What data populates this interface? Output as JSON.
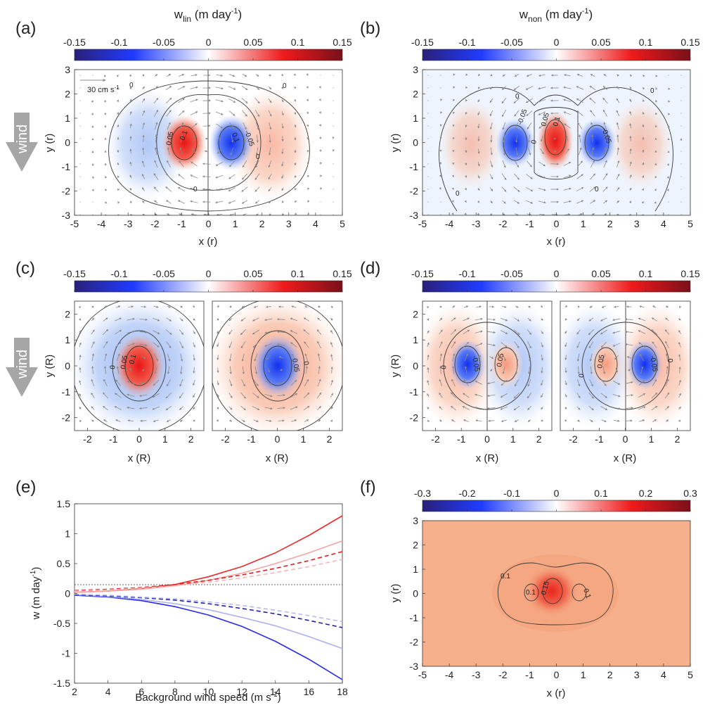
{
  "panel_labels": [
    "(a)",
    "(b)",
    "(c)",
    "(d)",
    "(e)",
    "(f)"
  ],
  "wind_label": "wind",
  "colors": {
    "neg_dark": "#2a1f7a",
    "neg": "#1f3cff",
    "zero": "#ffffff",
    "pos": "#ee1b1b",
    "pos_dark": "#7a0f1a",
    "field_f": "#f6b18c",
    "contour": "#3a3a3a",
    "arrow": "#8a8a8a"
  },
  "chart_data": [
    {
      "id": "a",
      "type": "heatmap",
      "title_main": "w",
      "title_sub": "lin",
      "title_unit": " (m day",
      "title_exp": "-1",
      "title_close": ")",
      "colorbar": {
        "min": -0.15,
        "max": 0.15,
        "ticks": [
          "-0.15",
          "-0.1",
          "-0.05",
          "0",
          "0.05",
          "0.1",
          "0.15"
        ]
      },
      "xlabel": "x (r)",
      "ylabel": "y (r)",
      "xlim": [
        -5,
        5
      ],
      "ylim": [
        -3,
        3
      ],
      "xticks": [
        "-5",
        "-4",
        "-3",
        "-2",
        "-1",
        "0",
        "1",
        "2",
        "3",
        "4",
        "5"
      ],
      "yticks": [
        "-3",
        "-2",
        "-1",
        "0",
        "1",
        "2",
        "3"
      ],
      "reference_arrow": {
        "label_main": "30 cm s",
        "label_exp": "-1"
      },
      "contour_labels": [
        "0",
        "0",
        "0",
        "0",
        "0.05",
        "0.1",
        "-0.05",
        "0.1"
      ]
    },
    {
      "id": "b",
      "type": "heatmap",
      "title_main": "w",
      "title_sub": "non",
      "title_unit": " (m day",
      "title_exp": "-1",
      "title_close": ")",
      "colorbar": {
        "min": -0.15,
        "max": 0.15,
        "ticks": [
          "-0.15",
          "-0.1",
          "-0.05",
          "0",
          "0.05",
          "0.1",
          "0.15"
        ]
      },
      "xlabel": "x (r)",
      "ylabel": "y (r)",
      "xlim": [
        -5,
        5
      ],
      "ylim": [
        -3,
        3
      ],
      "xticks": [
        "-5",
        "-4",
        "-3",
        "-2",
        "-1",
        "0",
        "1",
        "2",
        "3",
        "4",
        "5"
      ],
      "yticks": [
        "-3",
        "-2",
        "-1",
        "0",
        "1",
        "2",
        "3"
      ],
      "contour_labels": [
        "0",
        "0",
        "0",
        "0",
        "-0.05",
        "0.05",
        "0",
        "0.1",
        "-0.05"
      ]
    },
    {
      "id": "c",
      "type": "heatmap",
      "colorbar": {
        "min": -0.15,
        "max": 0.15,
        "ticks": [
          "-0.15",
          "-0.1",
          "-0.05",
          "0",
          "0.05",
          "0.1",
          "0.15"
        ]
      },
      "xlabel": "x (R)",
      "ylabel": "y (R)",
      "xlim": [
        -2.5,
        2.5
      ],
      "ylim": [
        -2.5,
        2.5
      ],
      "xticks": [
        "-2",
        "-1",
        "0",
        "1",
        "2"
      ],
      "yticks": [
        "-2",
        "-1",
        "0",
        "1",
        "2"
      ],
      "contour_labels": [
        "0",
        "0.05",
        "0.1",
        "0",
        "0.05"
      ]
    },
    {
      "id": "d",
      "type": "heatmap",
      "colorbar": {
        "min": -0.15,
        "max": 0.15,
        "ticks": [
          "-0.15",
          "-0.1",
          "-0.05",
          "0",
          "0.05",
          "0.1",
          "0.15"
        ]
      },
      "xlabel": "x (R)",
      "ylabel": "y (R)",
      "xlim": [
        -2.5,
        2.5
      ],
      "ylim": [
        -2.5,
        2.5
      ],
      "xticks": [
        "-2",
        "-1",
        "0",
        "1",
        "2"
      ],
      "yticks": [
        "-2",
        "-1",
        "0",
        "1",
        "2"
      ],
      "contour_labels": [
        "-0.05",
        "0",
        "0.05",
        "0",
        "0.05",
        "0",
        "-0.05"
      ]
    },
    {
      "id": "e",
      "type": "line",
      "xlabel": "Background wind speed (m s",
      "xlabel_exp": "-1",
      "xlabel_close": ")",
      "ylabel": "w (m day",
      "ylabel_exp": "-1",
      "ylabel_close": ")",
      "xlim": [
        2,
        18
      ],
      "ylim": [
        -1.5,
        1.5
      ],
      "xticks": [
        "2",
        "4",
        "6",
        "8",
        "10",
        "12",
        "14",
        "16",
        "18"
      ],
      "yticks": [
        "-1.5",
        "-1",
        "-0.5",
        "0",
        "0.5",
        "1",
        "1.5"
      ],
      "x": [
        2,
        4,
        6,
        8,
        10,
        12,
        14,
        16,
        18
      ],
      "series": [
        {
          "color": "#ee2b2b",
          "dash": false,
          "values": [
            0.02,
            0.04,
            0.08,
            0.15,
            0.28,
            0.45,
            0.68,
            0.97,
            1.3
          ]
        },
        {
          "color": "#f5a5a5",
          "dash": false,
          "values": [
            0.02,
            0.04,
            0.07,
            0.13,
            0.22,
            0.34,
            0.5,
            0.68,
            0.88
          ]
        },
        {
          "color": "#dd2020",
          "dash": true,
          "values": [
            0.05,
            0.07,
            0.1,
            0.15,
            0.22,
            0.31,
            0.42,
            0.55,
            0.7
          ]
        },
        {
          "color": "#f5b5b5",
          "dash": true,
          "values": [
            0.04,
            0.06,
            0.09,
            0.13,
            0.19,
            0.26,
            0.35,
            0.45,
            0.57
          ]
        },
        {
          "color": "#2a2aee",
          "dash": false,
          "values": [
            -0.03,
            -0.06,
            -0.12,
            -0.22,
            -0.36,
            -0.55,
            -0.8,
            -1.1,
            -1.44
          ]
        },
        {
          "color": "#aab0f0",
          "dash": false,
          "values": [
            -0.02,
            -0.05,
            -0.1,
            -0.17,
            -0.27,
            -0.4,
            -0.54,
            -0.72,
            -0.92
          ]
        },
        {
          "color": "#2020aa",
          "dash": true,
          "values": [
            -0.02,
            -0.04,
            -0.07,
            -0.11,
            -0.17,
            -0.25,
            -0.34,
            -0.45,
            -0.57
          ]
        },
        {
          "color": "#b5bbf0",
          "dash": true,
          "values": [
            -0.01,
            -0.03,
            -0.06,
            -0.09,
            -0.14,
            -0.2,
            -0.28,
            -0.37,
            -0.47
          ]
        }
      ]
    },
    {
      "id": "f",
      "type": "heatmap",
      "colorbar": {
        "min": -0.3,
        "max": 0.3,
        "ticks": [
          "-0.3",
          "-0.2",
          "-0.1",
          "0",
          "0.1",
          "0.2",
          "0.3"
        ]
      },
      "xlabel": "x (r)",
      "ylabel": "y (r)",
      "xlim": [
        -5,
        5
      ],
      "ylim": [
        -3,
        3
      ],
      "xticks": [
        "-5",
        "-4",
        "-3",
        "-2",
        "-1",
        "0",
        "1",
        "2",
        "3",
        "4",
        "5"
      ],
      "yticks": [
        "-3",
        "-2",
        "-1",
        "0",
        "1",
        "2",
        "3"
      ],
      "contour_labels": [
        "0.1",
        "0.1",
        "0.15",
        "0.1"
      ]
    }
  ]
}
